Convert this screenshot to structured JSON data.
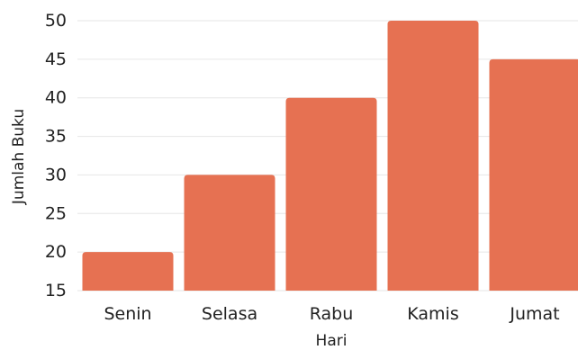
{
  "chart_data": {
    "type": "bar",
    "categories": [
      "Senin",
      "Selasa",
      "Rabu",
      "Kamis",
      "Jumat"
    ],
    "values": [
      20,
      30,
      40,
      50,
      45
    ],
    "title": "",
    "xlabel": "Hari",
    "ylabel": "Jumlah Buku",
    "ylim": [
      15,
      50
    ],
    "yticks": [
      15,
      20,
      25,
      30,
      35,
      40,
      45,
      50
    ],
    "grid": true,
    "bar_color": "#E67152",
    "grid_color": "#E6E6E6",
    "text_color": "#222222"
  }
}
